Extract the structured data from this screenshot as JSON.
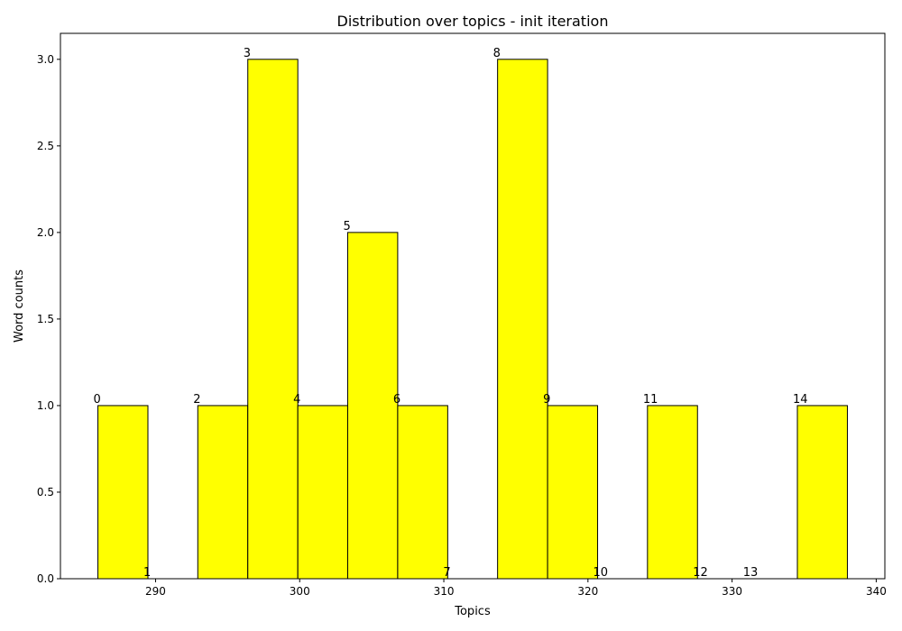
{
  "chart_data": {
    "type": "bar",
    "title": "Distribution over topics - init iteration",
    "xlabel": "Topics",
    "ylabel": "Word counts",
    "xlim": [
      283.4,
      340.6
    ],
    "ylim": [
      0,
      3.15
    ],
    "xticks": [
      290,
      300,
      310,
      320,
      330,
      340
    ],
    "yticks": [
      0.0,
      0.5,
      1.0,
      1.5,
      2.0,
      2.5,
      3.0
    ],
    "bar_color": "#ffff00",
    "edge_color": "#000000",
    "grid": false,
    "bins": [
      {
        "label": "0",
        "start": 286.0,
        "end": 289.47,
        "value": 1
      },
      {
        "label": "1",
        "start": 289.47,
        "end": 292.93,
        "value": 0
      },
      {
        "label": "2",
        "start": 292.93,
        "end": 296.4,
        "value": 1
      },
      {
        "label": "3",
        "start": 296.4,
        "end": 299.87,
        "value": 3
      },
      {
        "label": "4",
        "start": 299.87,
        "end": 303.33,
        "value": 1
      },
      {
        "label": "5",
        "start": 303.33,
        "end": 306.8,
        "value": 2
      },
      {
        "label": "6",
        "start": 306.8,
        "end": 310.27,
        "value": 1
      },
      {
        "label": "7",
        "start": 310.27,
        "end": 313.73,
        "value": 0
      },
      {
        "label": "8",
        "start": 313.73,
        "end": 317.2,
        "value": 3
      },
      {
        "label": "9",
        "start": 317.2,
        "end": 320.67,
        "value": 1
      },
      {
        "label": "10",
        "start": 320.67,
        "end": 324.13,
        "value": 0
      },
      {
        "label": "11",
        "start": 324.13,
        "end": 327.6,
        "value": 1
      },
      {
        "label": "12",
        "start": 327.6,
        "end": 331.07,
        "value": 0
      },
      {
        "label": "13",
        "start": 331.07,
        "end": 334.53,
        "value": 0
      },
      {
        "label": "14",
        "start": 334.53,
        "end": 338.0,
        "value": 1
      }
    ]
  }
}
